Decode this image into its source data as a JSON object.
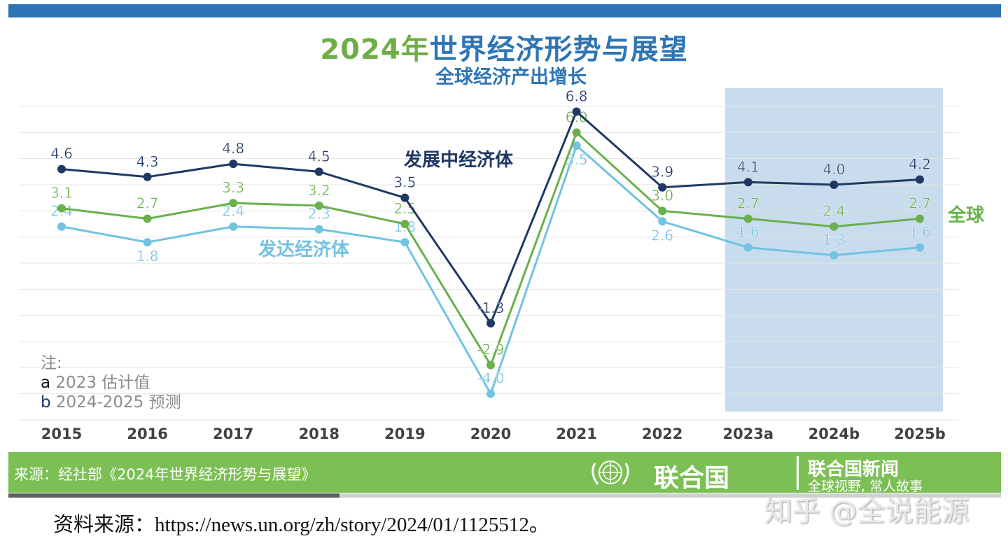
{
  "header": {
    "title_year": "2024年",
    "title_rest": "世界经济形势与展望",
    "subtitle": "全球经济产出增长"
  },
  "notes": {
    "heading": "注:",
    "a_key": "a",
    "a_text": "2023 估计值",
    "b_key": "b",
    "b_text": "2024-2025 预测"
  },
  "footer": {
    "source": "来源：经社部《2024年世界经济形势与展望》",
    "un": "联合国",
    "news": "联合国新闻",
    "slogan": "全球视野, 常人故事",
    "emblem_icon": "un-emblem-icon"
  },
  "caption": "资料来源：https://news.un.org/zh/story/2024/01/1125512。",
  "watermark": "知乎 @全说能源",
  "colors": {
    "developing": "#1f3864",
    "world": "#6ab04c",
    "developed": "#72c2e2",
    "shade": "#c9dcee",
    "accent": "#2e75b6"
  },
  "chart_data": {
    "type": "line",
    "categories": [
      "2015",
      "2016",
      "2017",
      "2018",
      "2019",
      "2020",
      "2021",
      "2022",
      "2023a",
      "2024b",
      "2025b"
    ],
    "ylim": [
      -5,
      7
    ],
    "grid": true,
    "shaded_categories": [
      "2023a",
      "2024b",
      "2025b"
    ],
    "series": [
      {
        "name": "发展中经济体",
        "key": "developing",
        "values": [
          4.6,
          4.3,
          4.8,
          4.5,
          3.5,
          -1.3,
          6.8,
          3.9,
          4.1,
          4.0,
          4.2
        ]
      },
      {
        "name": "全球",
        "key": "world",
        "values": [
          3.1,
          2.7,
          3.3,
          3.2,
          2.5,
          -2.9,
          6.0,
          3.0,
          2.7,
          2.4,
          2.7
        ]
      },
      {
        "name": "发达经济体",
        "key": "developed",
        "values": [
          2.4,
          1.8,
          2.4,
          2.3,
          1.8,
          -4.0,
          5.5,
          2.6,
          1.6,
          1.3,
          1.6
        ]
      }
    ]
  }
}
